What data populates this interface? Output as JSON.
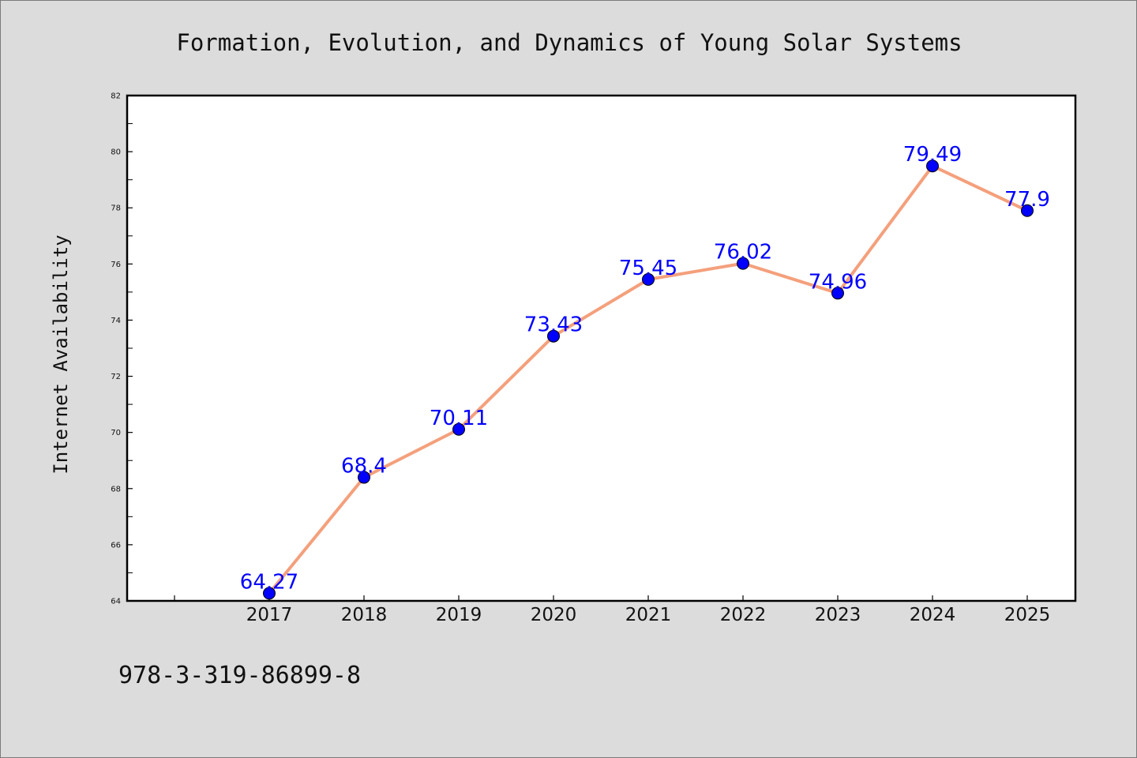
{
  "footer": {
    "isbn": "978-3-319-86899-8"
  },
  "chart_data": {
    "type": "line",
    "title": "Formation, Evolution, and Dynamics of Young Solar Systems",
    "xlabel": "",
    "ylabel": "Internet Availability",
    "categories": [
      "2017",
      "2018",
      "2019",
      "2020",
      "2021",
      "2022",
      "2023",
      "2024",
      "2025"
    ],
    "series": [
      {
        "values": [
          64.27,
          68.4,
          70.11,
          73.43,
          75.45,
          76.02,
          74.96,
          79.49,
          77.9
        ],
        "labels": [
          "64.27",
          "68.4",
          "70.11",
          "73.43",
          "75.45",
          "76.02",
          "74.96",
          "79.49",
          "77.9"
        ],
        "line_color": "#f4a07c",
        "marker_color": "#0000ff",
        "label_color": "#0000ff"
      }
    ],
    "ylim": [
      64,
      82
    ],
    "yticks": [
      "64",
      "66",
      "68",
      "70",
      "72",
      "74",
      "76",
      "78",
      "80",
      "82"
    ],
    "grid": false,
    "legend": "none",
    "colors": {
      "figure_background": "#dcdcdc",
      "plot_background": "#ffffff",
      "axes": "#000000"
    }
  }
}
